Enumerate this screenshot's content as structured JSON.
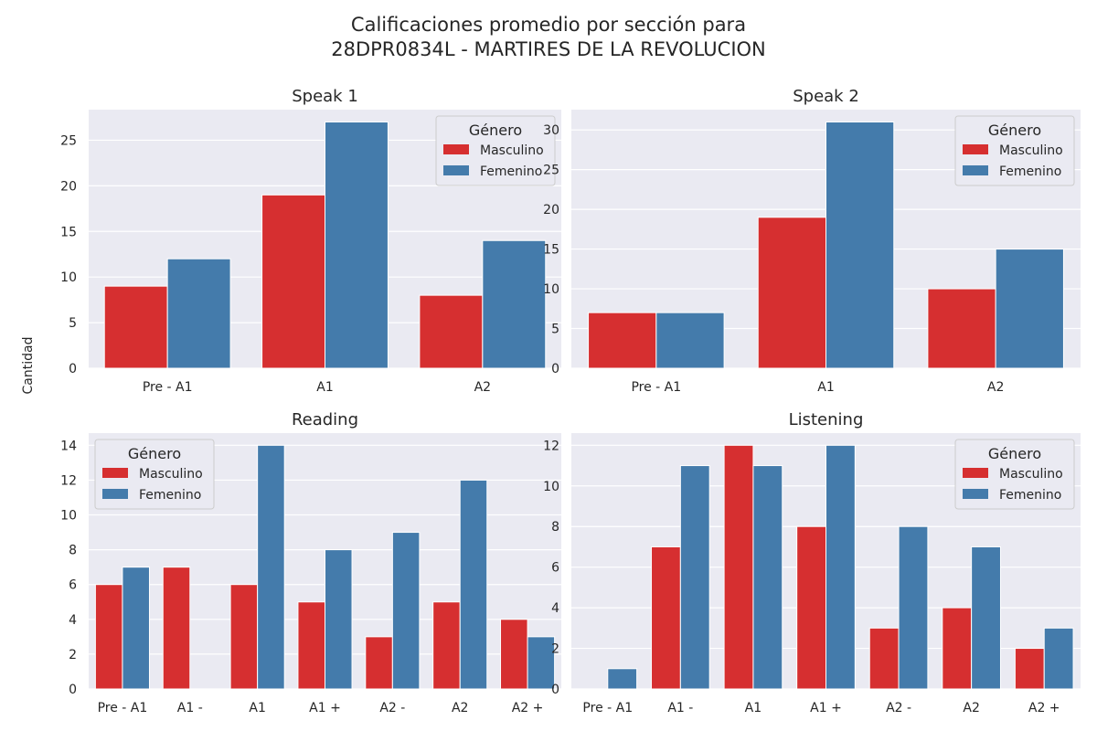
{
  "figure": {
    "title_line1": "Calificaciones promedio por sección para",
    "title_line2": "28DPR0834L - MARTIRES DE LA REVOLUCION",
    "ylabel": "Cantidad"
  },
  "colors": {
    "Masculino": "#d62f30",
    "Femenino": "#447bab",
    "panel_bg": "#eaeaf2",
    "grid": "#ffffff"
  },
  "chart_data": [
    {
      "type": "bar",
      "title": "Speak 1",
      "categories": [
        "Pre - A1",
        "A1",
        "A2"
      ],
      "series": [
        {
          "name": "Masculino",
          "values": [
            9,
            19,
            8
          ]
        },
        {
          "name": "Femenino",
          "values": [
            12,
            27,
            14
          ]
        }
      ],
      "ylim": [
        0,
        28.35
      ],
      "yticks": [
        0,
        5,
        10,
        15,
        20,
        25
      ],
      "legend": {
        "title": "Género",
        "position": "top-right"
      },
      "grid": true
    },
    {
      "type": "bar",
      "title": "Speak 2",
      "categories": [
        "Pre - A1",
        "A1",
        "A2"
      ],
      "series": [
        {
          "name": "Masculino",
          "values": [
            7,
            19,
            10
          ]
        },
        {
          "name": "Femenino",
          "values": [
            7,
            31,
            15
          ]
        }
      ],
      "ylim": [
        0,
        32.55
      ],
      "yticks": [
        0,
        5,
        10,
        15,
        20,
        25,
        30
      ],
      "legend": {
        "title": "Género",
        "position": "top-right"
      },
      "grid": true
    },
    {
      "type": "bar",
      "title": "Reading",
      "categories": [
        "Pre - A1",
        "A1 -",
        "A1",
        "A1 +",
        "A2 -",
        "A2",
        "A2 +"
      ],
      "series": [
        {
          "name": "Masculino",
          "values": [
            6,
            7,
            6,
            5,
            3,
            5,
            4
          ]
        },
        {
          "name": "Femenino",
          "values": [
            7,
            0,
            14,
            8,
            9,
            12,
            3
          ]
        }
      ],
      "ylim": [
        0,
        14.7
      ],
      "yticks": [
        0,
        2,
        4,
        6,
        8,
        10,
        12,
        14
      ],
      "legend": {
        "title": "Género",
        "position": "top-left"
      },
      "grid": true
    },
    {
      "type": "bar",
      "title": "Listening",
      "categories": [
        "Pre - A1",
        "A1 -",
        "A1",
        "A1 +",
        "A2 -",
        "A2",
        "A2 +"
      ],
      "series": [
        {
          "name": "Masculino",
          "values": [
            0,
            7,
            12,
            8,
            3,
            4,
            2
          ]
        },
        {
          "name": "Femenino",
          "values": [
            1,
            11,
            11,
            12,
            8,
            7,
            3
          ]
        }
      ],
      "ylim": [
        0,
        12.6
      ],
      "yticks": [
        0,
        2,
        4,
        6,
        8,
        10,
        12
      ],
      "legend": {
        "title": "Género",
        "position": "top-right"
      },
      "grid": true
    }
  ]
}
